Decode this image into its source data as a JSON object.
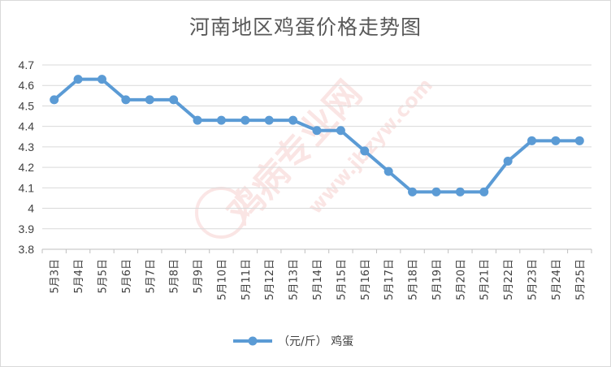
{
  "chart_data": {
    "type": "line",
    "title": "河南地区鸡蛋价格走势图",
    "categories": [
      "5月3日",
      "5月4日",
      "5月5日",
      "5月6日",
      "5月7日",
      "5月8日",
      "5月9日",
      "5月10日",
      "5月11日",
      "5月12日",
      "5月13日",
      "5月14日",
      "5月15日",
      "5月16日",
      "5月17日",
      "5月18日",
      "5月19日",
      "5月20日",
      "5月21日",
      "5月22日",
      "5月23日",
      "5月24日",
      "5月25日"
    ],
    "series": [
      {
        "name": "（元/斤） 鸡蛋",
        "values": [
          4.53,
          4.63,
          4.63,
          4.53,
          4.53,
          4.53,
          4.43,
          4.43,
          4.43,
          4.43,
          4.43,
          4.38,
          4.38,
          4.28,
          4.18,
          4.08,
          4.08,
          4.08,
          4.08,
          4.23,
          4.33,
          4.33,
          4.33
        ]
      }
    ],
    "yticks": [
      "3.8",
      "3.9",
      "4",
      "4.1",
      "4.2",
      "4.3",
      "4.4",
      "4.5",
      "4.6",
      "4.7"
    ],
    "ylim": [
      3.8,
      4.7
    ],
    "grid": true,
    "legend_position": "bottom",
    "series_color": "#5b9bd5"
  },
  "watermark": {
    "brand": "鸡病专业网",
    "url": "www.jbzyw.com"
  }
}
